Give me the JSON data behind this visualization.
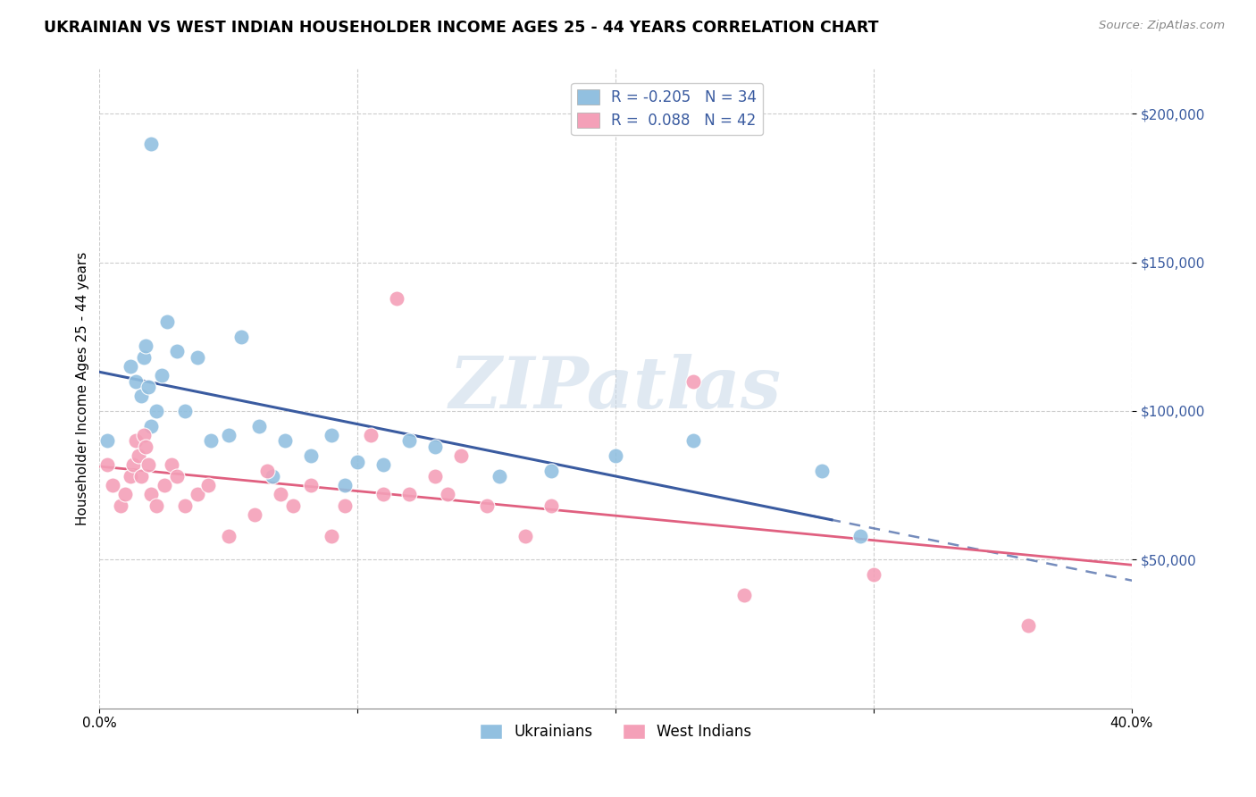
{
  "title": "UKRAINIAN VS WEST INDIAN HOUSEHOLDER INCOME AGES 25 - 44 YEARS CORRELATION CHART",
  "source": "Source: ZipAtlas.com",
  "ylabel": "Householder Income Ages 25 - 44 years",
  "xlim": [
    0.0,
    0.4
  ],
  "ylim": [
    0,
    215000
  ],
  "ukr_color": "#92C0E0",
  "wi_color": "#F4A0B8",
  "ukr_line_color": "#3A5BA0",
  "wi_line_color": "#E06080",
  "background_color": "#ffffff",
  "watermark": "ZIPatlas",
  "legend_ukr_label": "R = -0.205   N = 34",
  "legend_wi_label": "R =  0.088   N = 42",
  "legend_ukr_box": "#92C0E0",
  "legend_wi_box": "#F4A0B8",
  "bottom_legend_ukr": "Ukrainians",
  "bottom_legend_wi": "West Indians",
  "ukrainians_x": [
    0.003,
    0.012,
    0.014,
    0.016,
    0.017,
    0.018,
    0.019,
    0.02,
    0.022,
    0.024,
    0.026,
    0.03,
    0.033,
    0.038,
    0.043,
    0.05,
    0.055,
    0.062,
    0.067,
    0.072,
    0.082,
    0.09,
    0.095,
    0.1,
    0.11,
    0.12,
    0.13,
    0.155,
    0.175,
    0.2,
    0.23,
    0.28,
    0.295,
    0.02
  ],
  "ukrainians_y": [
    90000,
    115000,
    110000,
    105000,
    118000,
    122000,
    108000,
    95000,
    100000,
    112000,
    130000,
    120000,
    100000,
    118000,
    90000,
    92000,
    125000,
    95000,
    78000,
    90000,
    85000,
    92000,
    75000,
    83000,
    82000,
    90000,
    88000,
    78000,
    80000,
    85000,
    90000,
    80000,
    58000,
    190000
  ],
  "west_indians_x": [
    0.003,
    0.005,
    0.008,
    0.01,
    0.012,
    0.013,
    0.014,
    0.015,
    0.016,
    0.017,
    0.018,
    0.019,
    0.02,
    0.022,
    0.025,
    0.028,
    0.03,
    0.033,
    0.038,
    0.042,
    0.05,
    0.06,
    0.065,
    0.07,
    0.075,
    0.082,
    0.09,
    0.095,
    0.105,
    0.11,
    0.115,
    0.12,
    0.13,
    0.135,
    0.14,
    0.15,
    0.165,
    0.175,
    0.23,
    0.25,
    0.3,
    0.36
  ],
  "west_indians_y": [
    82000,
    75000,
    68000,
    72000,
    78000,
    82000,
    90000,
    85000,
    78000,
    92000,
    88000,
    82000,
    72000,
    68000,
    75000,
    82000,
    78000,
    68000,
    72000,
    75000,
    58000,
    65000,
    80000,
    72000,
    68000,
    75000,
    58000,
    68000,
    92000,
    72000,
    138000,
    72000,
    78000,
    72000,
    85000,
    68000,
    58000,
    68000,
    110000,
    38000,
    45000,
    28000
  ]
}
